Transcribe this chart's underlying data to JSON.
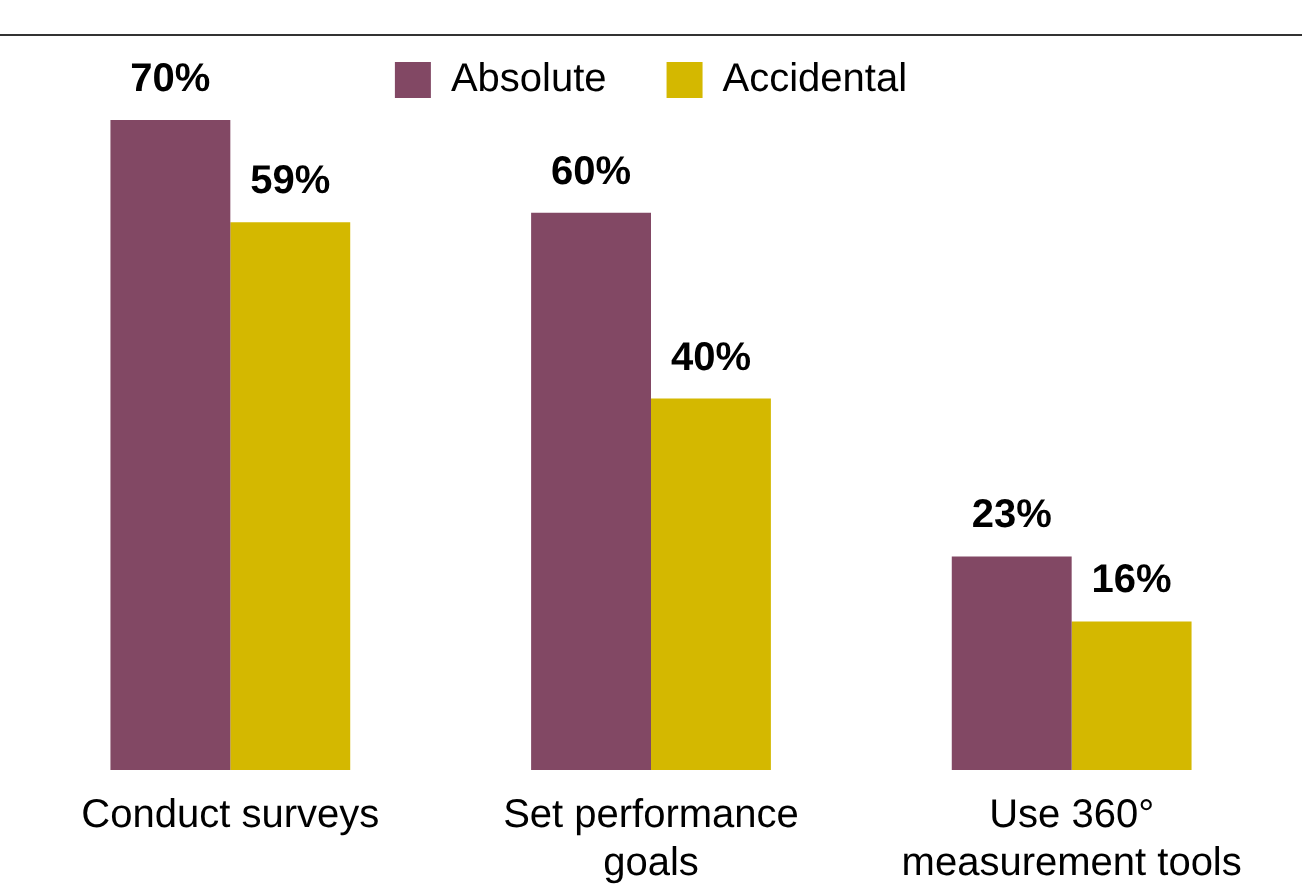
{
  "chart_data": {
    "type": "bar",
    "categories": [
      "Conduct surveys",
      "Set performance goals",
      "Use 360° measurement tools"
    ],
    "series": [
      {
        "name": "Absolute",
        "color": "#824864",
        "values": [
          70,
          60,
          23
        ],
        "value_labels": [
          "70%",
          "60%",
          "23%"
        ]
      },
      {
        "name": "Accidental",
        "color": "#d4b800",
        "values": [
          59,
          40,
          16
        ],
        "value_labels": [
          "59%",
          "40%",
          "16%"
        ]
      }
    ],
    "legend": "top",
    "grid": false,
    "tick_labels": "x"
  }
}
